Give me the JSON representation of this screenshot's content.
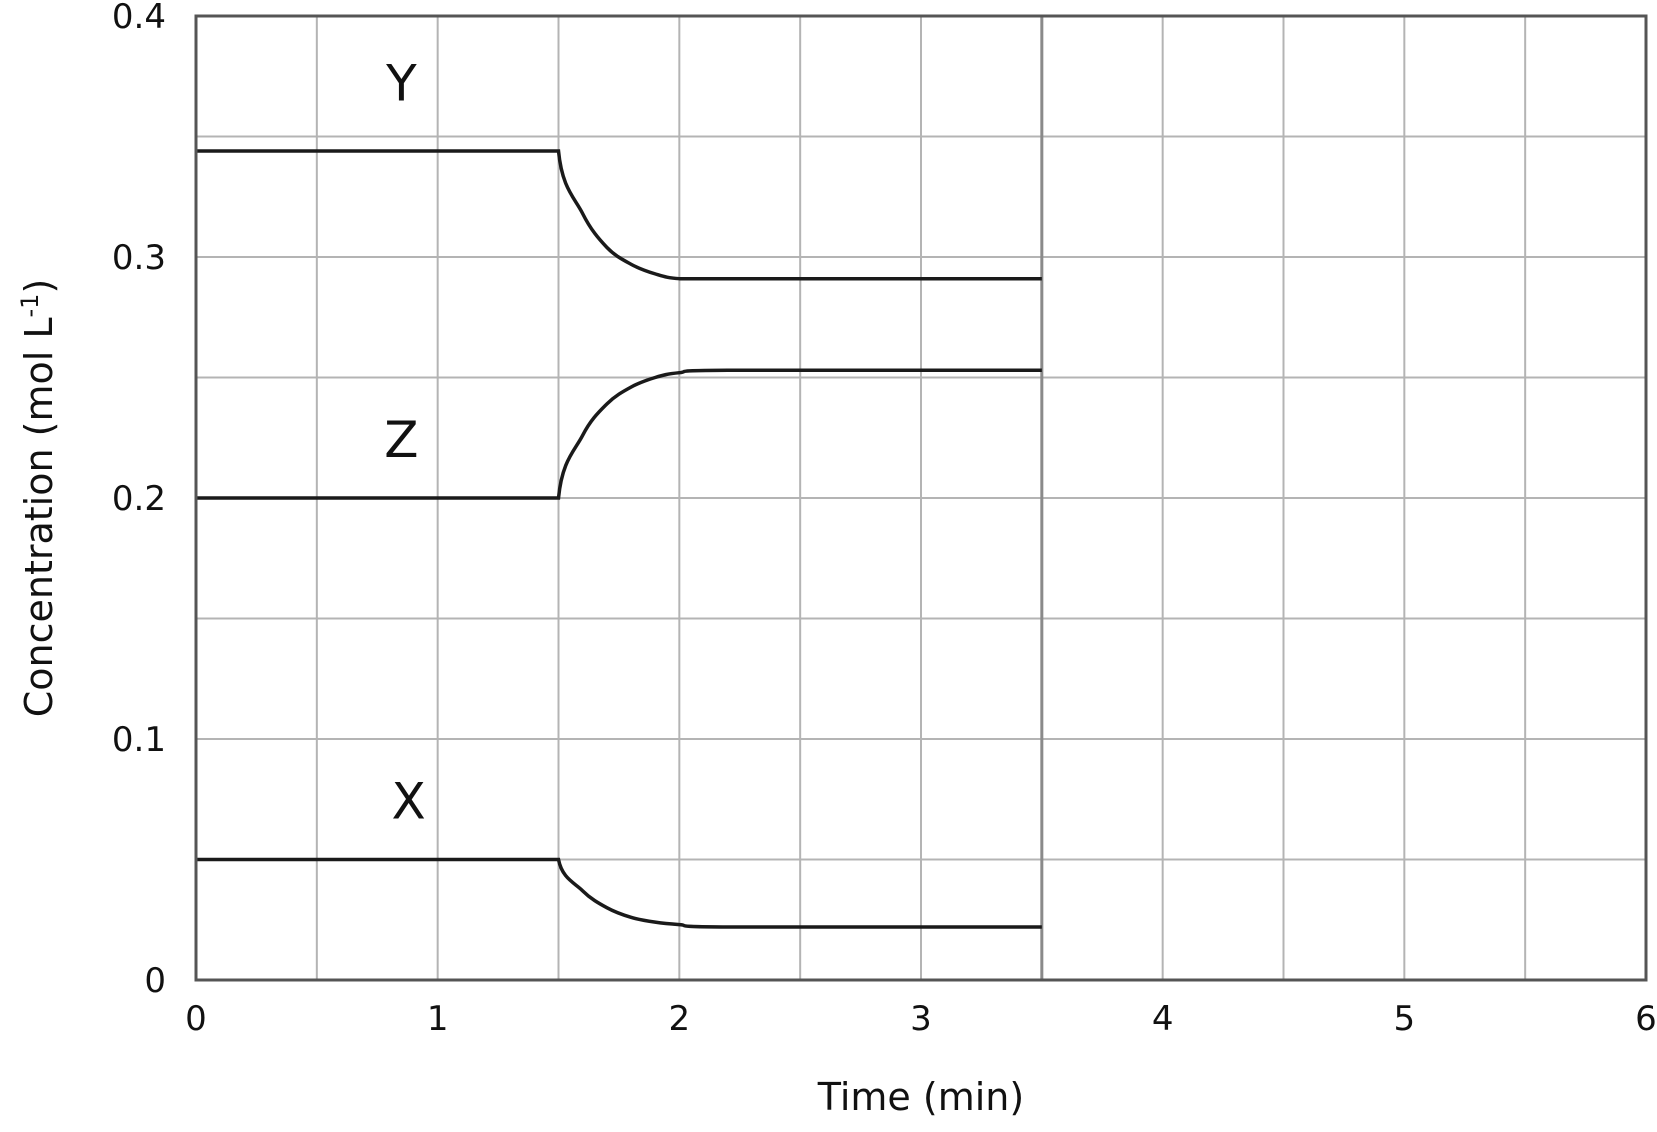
{
  "chart_data": {
    "type": "line",
    "title": "",
    "xlabel": "Time (min)",
    "ylabel": "Concentration (mol L",
    "ylabel_sup": "-1",
    "ylabel_suffix": ")",
    "xlim": [
      0,
      6
    ],
    "ylim": [
      0,
      0.4
    ],
    "x_ticks": [
      0,
      1,
      2,
      3,
      4,
      5,
      6
    ],
    "x_tick_labels": [
      "0",
      "1",
      "2",
      "3",
      "4",
      "5",
      "6"
    ],
    "y_ticks": [
      0,
      0.1,
      0.2,
      0.3,
      0.4
    ],
    "y_tick_labels": [
      "0",
      "0.1",
      "0.2",
      "0.3",
      "0.4"
    ],
    "grid": true,
    "legend": "none",
    "series": [
      {
        "name": "Y",
        "x": [
          0,
          1.5,
          1.6,
          1.7,
          1.8,
          1.9,
          2.0,
          2.2,
          3.5
        ],
        "values": [
          0.344,
          0.344,
          0.318,
          0.304,
          0.297,
          0.293,
          0.291,
          0.291,
          0.291
        ]
      },
      {
        "name": "Z",
        "x": [
          0,
          1.5,
          1.6,
          1.7,
          1.8,
          1.9,
          2.0,
          2.2,
          3.5
        ],
        "values": [
          0.2,
          0.2,
          0.226,
          0.239,
          0.246,
          0.25,
          0.252,
          0.253,
          0.253
        ]
      },
      {
        "name": "X",
        "x": [
          0,
          1.5,
          1.6,
          1.7,
          1.8,
          1.9,
          2.0,
          2.2,
          3.5
        ],
        "values": [
          0.05,
          0.05,
          0.037,
          0.03,
          0.026,
          0.024,
          0.023,
          0.022,
          0.022
        ]
      }
    ],
    "annotations": [
      {
        "text": "Y",
        "x": 0.85,
        "y": 0.365
      },
      {
        "text": "Z",
        "x": 0.85,
        "y": 0.217
      },
      {
        "text": "X",
        "x": 0.88,
        "y": 0.067
      }
    ],
    "marker_line_x": 3.5,
    "color": "#1a1a1a"
  }
}
